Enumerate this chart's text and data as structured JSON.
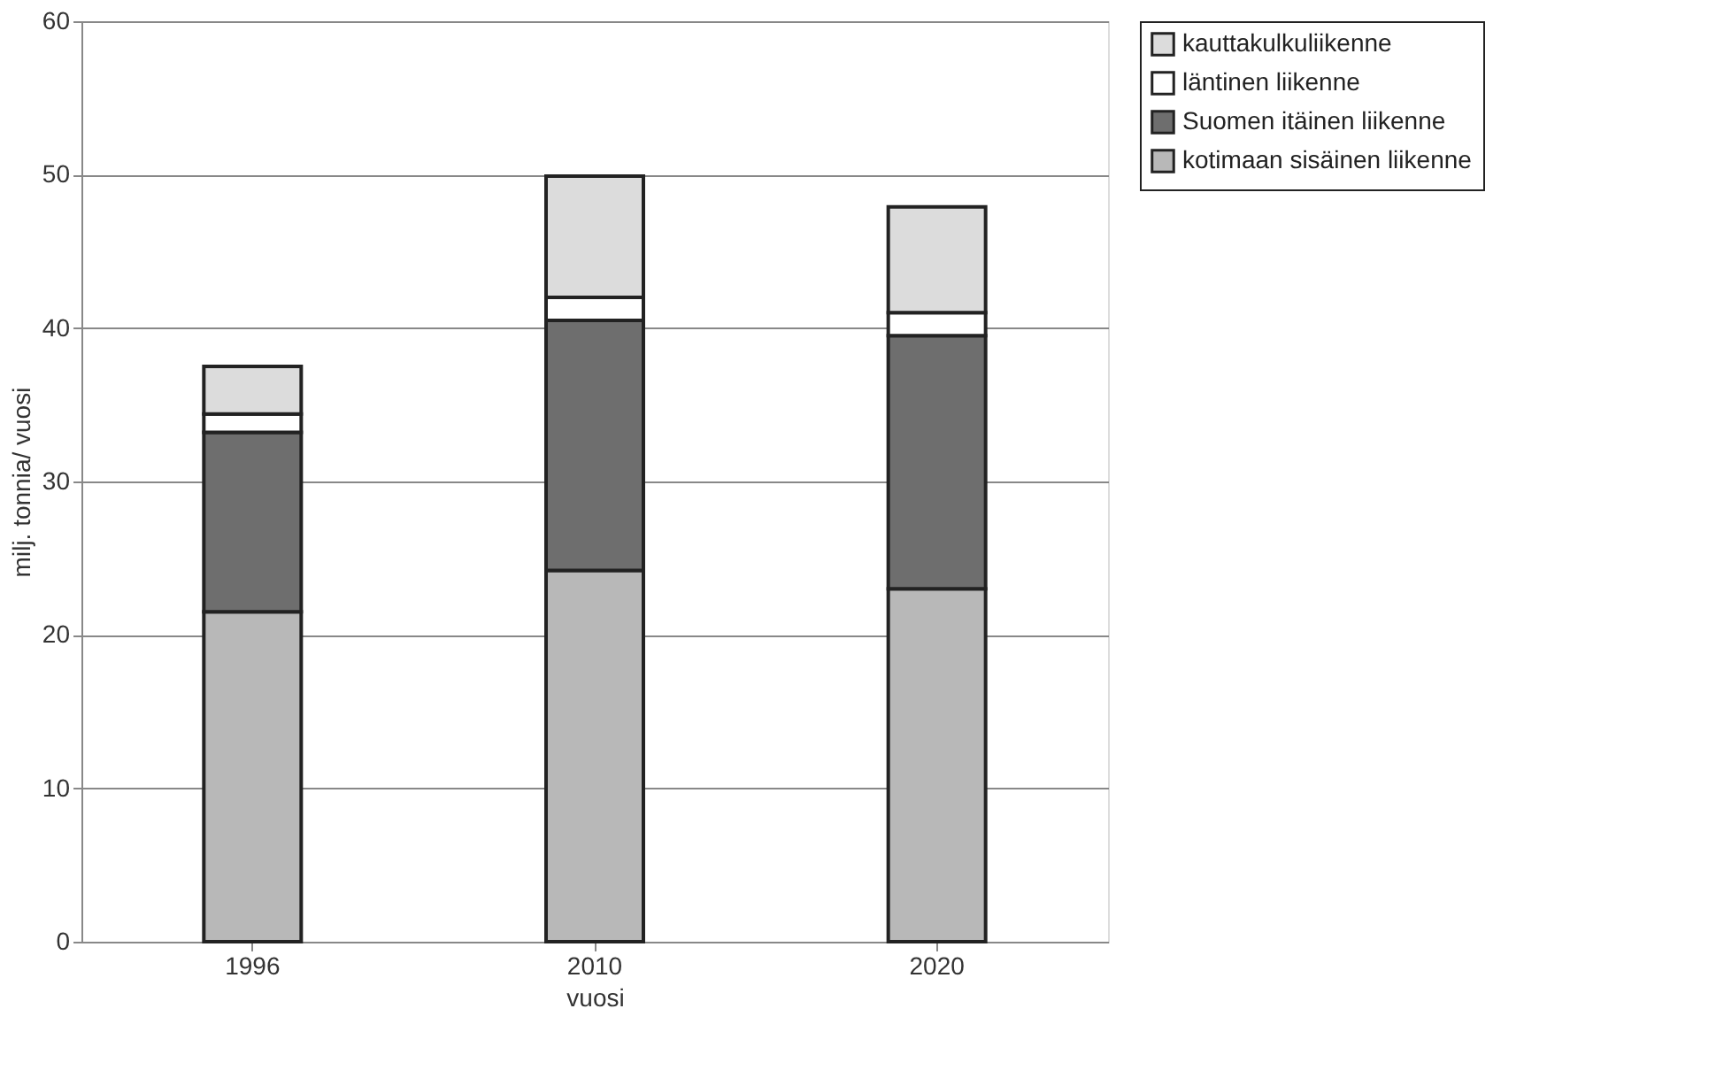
{
  "chart_data": {
    "type": "bar",
    "stacked": true,
    "xlabel": "vuosi",
    "ylabel": "milj. tonnia/ vuosi",
    "categories": [
      "1996",
      "2010",
      "2020"
    ],
    "series": [
      {
        "name": "kotimaan sisäinen liikenne",
        "color": "#b8b8b8",
        "values": [
          21.5,
          24.2,
          23.0
        ]
      },
      {
        "name": "Suomen itäinen liikenne",
        "color": "#6e6e6e",
        "values": [
          11.7,
          16.3,
          16.5
        ]
      },
      {
        "name": "läntinen liikenne",
        "color": "#ffffff",
        "values": [
          1.2,
          1.5,
          1.5
        ]
      },
      {
        "name": "kauttakulkuliikenne",
        "color": "#dcdcdc",
        "values": [
          3.1,
          7.9,
          6.9
        ]
      }
    ],
    "ylim": [
      0,
      60
    ],
    "yticks": [
      0,
      10,
      20,
      30,
      40,
      50,
      60
    ],
    "grid": "y",
    "legend": "right"
  }
}
